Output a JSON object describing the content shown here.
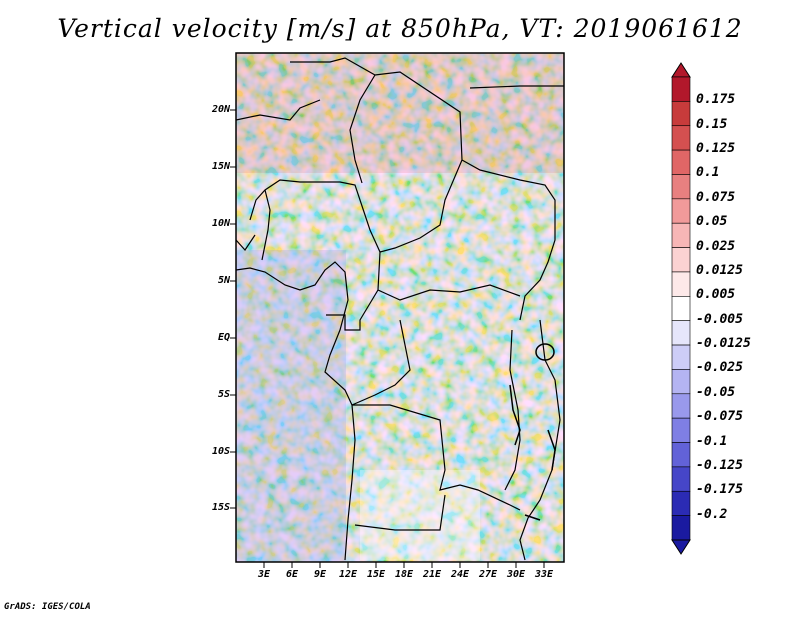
{
  "title": "Vertical velocity [m/s] at 850hPa, VT: 2019061612",
  "credit": "GrADS: IGES/COLA",
  "map": {
    "region": "Central Africa",
    "lat_labels": [
      "20N",
      "15N",
      "10N",
      "5N",
      "EQ",
      "5S",
      "10S",
      "15S"
    ],
    "lon_labels": [
      "3E",
      "6E",
      "9E",
      "12E",
      "15E",
      "18E",
      "21E",
      "24E",
      "27E",
      "30E",
      "33E"
    ]
  },
  "colorbar": {
    "labels": [
      "0.175",
      "0.15",
      "0.125",
      "0.1",
      "0.075",
      "0.05",
      "0.025",
      "0.0125",
      "0.005",
      "-0.005",
      "-0.0125",
      "-0.025",
      "-0.05",
      "-0.075",
      "-0.1",
      "-0.125",
      "-0.175",
      "-0.2"
    ],
    "colors": [
      "#b2182b",
      "#c73b3b",
      "#d45050",
      "#e06666",
      "#e88080",
      "#f19a9a",
      "#f7b6b6",
      "#fbd2d2",
      "#fde9e9",
      "#ffffff",
      "#e6e6fb",
      "#cdcdf7",
      "#b4b4f2",
      "#9999ec",
      "#7f7fe4",
      "#6262d8",
      "#4646c8",
      "#2b2bb4",
      "#1a1aa0"
    ],
    "arrow_top_color": "#b2182b",
    "arrow_bottom_color": "#1a1aa0"
  }
}
